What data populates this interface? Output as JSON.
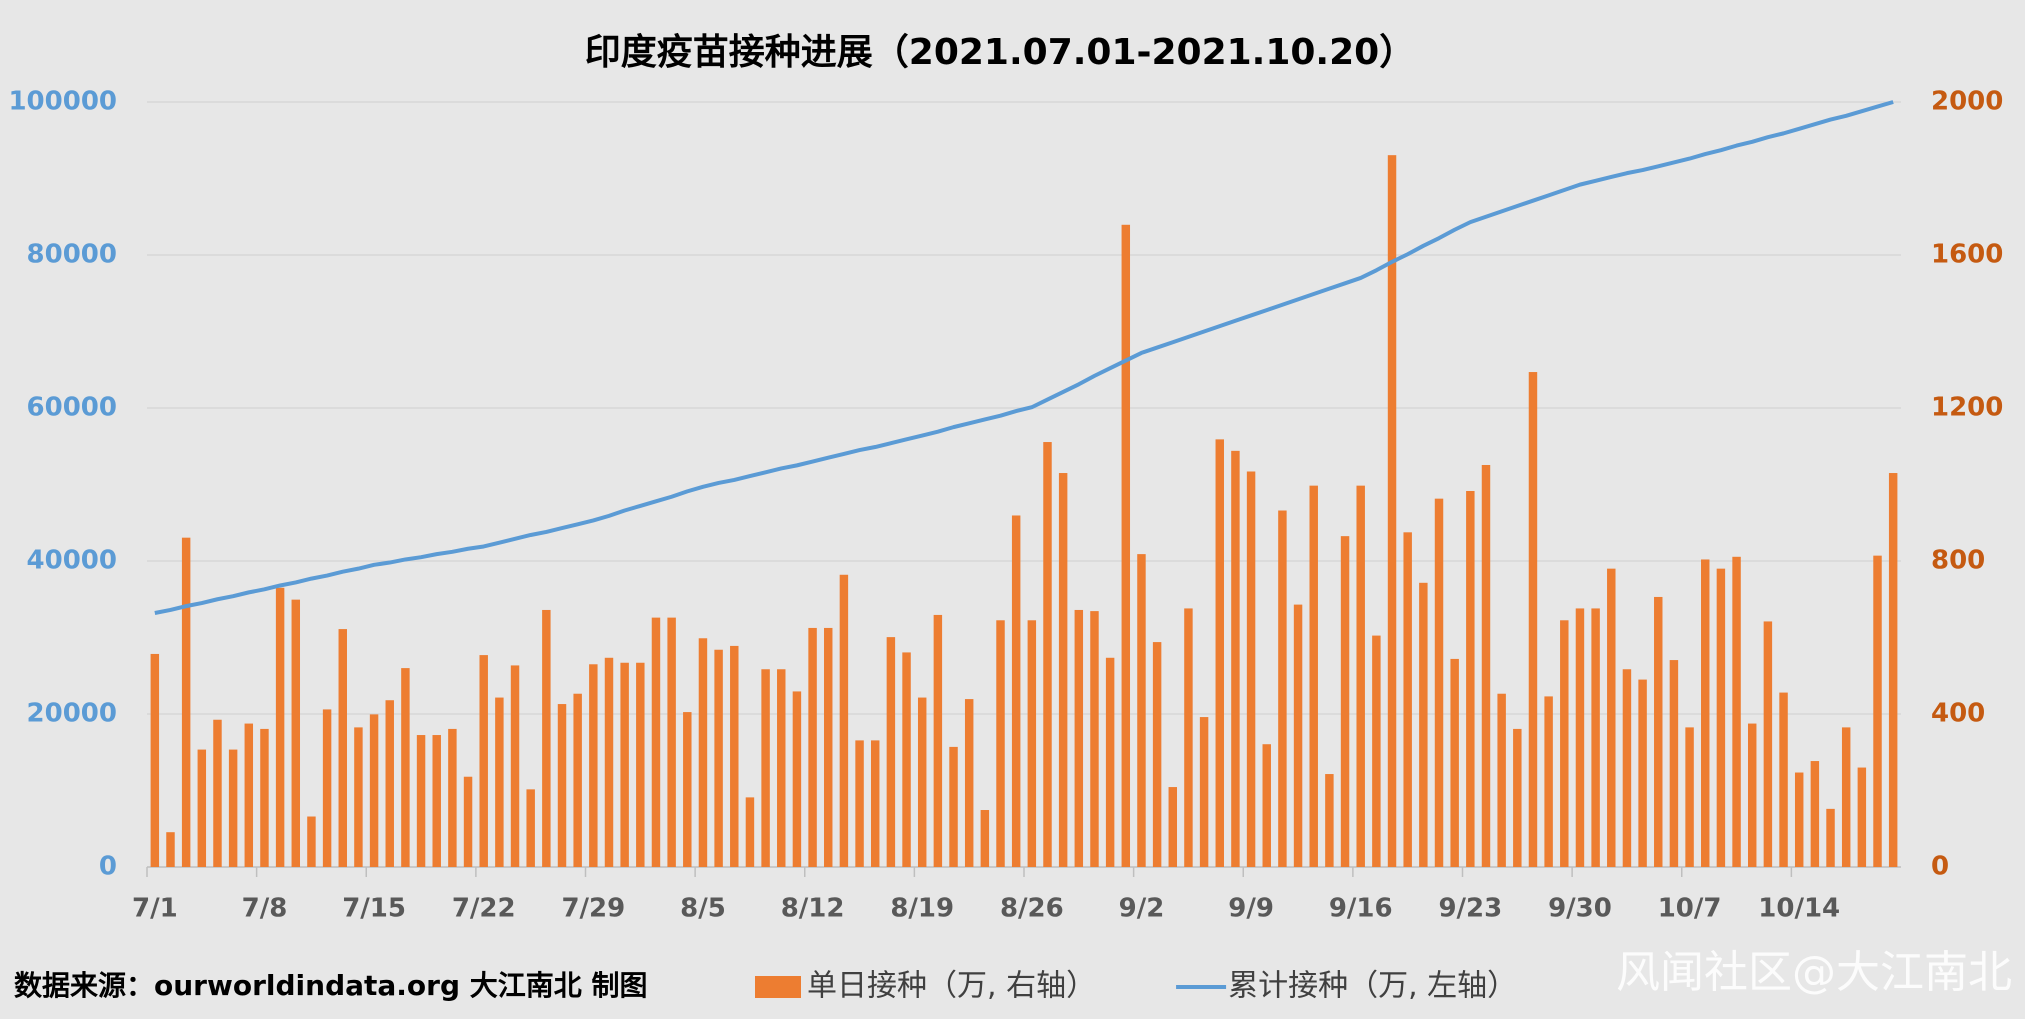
{
  "chart_data": {
    "type": "bar",
    "title": "印度疫苗接种进展（2021.07.01-2021.10.20）",
    "source": "数据来源：ourworldindata.org 大江南北 制图",
    "watermark": "风闻社区@大江南北",
    "categories": [
      "7/1",
      null,
      null,
      null,
      null,
      null,
      null,
      "7/8",
      null,
      null,
      null,
      null,
      null,
      null,
      "7/15",
      null,
      null,
      null,
      null,
      null,
      null,
      "7/22",
      null,
      null,
      null,
      null,
      null,
      null,
      "7/29",
      null,
      null,
      null,
      null,
      null,
      null,
      "8/5",
      null,
      null,
      null,
      null,
      null,
      null,
      "8/12",
      null,
      null,
      null,
      null,
      null,
      null,
      "8/19",
      null,
      null,
      null,
      null,
      null,
      null,
      "8/26",
      null,
      null,
      null,
      null,
      null,
      null,
      "9/2",
      null,
      null,
      null,
      null,
      null,
      null,
      "9/9",
      null,
      null,
      null,
      null,
      null,
      null,
      "9/16",
      null,
      null,
      null,
      null,
      null,
      null,
      "9/23",
      null,
      null,
      null,
      null,
      null,
      null,
      "9/30",
      null,
      null,
      null,
      null,
      null,
      null,
      "10/7",
      null,
      null,
      null,
      null,
      null,
      null,
      "10/14",
      null,
      null,
      null,
      null,
      null,
      null
    ],
    "series": [
      {
        "name": "单日接种（万, 右轴）",
        "type": "bar",
        "axis": "y2",
        "color": "#ed7d31",
        "values": [
          557,
          91,
          861,
          307,
          385,
          307,
          375,
          361,
          730,
          699,
          132,
          412,
          622,
          365,
          399,
          436,
          520,
          345,
          345,
          361,
          236,
          554,
          443,
          527,
          203,
          672,
          426,
          453,
          530,
          547,
          534,
          534,
          652,
          652,
          405,
          598,
          568,
          578,
          182,
          517,
          517,
          459,
          625,
          625,
          764,
          331,
          331,
          601,
          561,
          443,
          659,
          314,
          439,
          149,
          645,
          919,
          645,
          1111,
          1030,
          672,
          669,
          547,
          1679,
          818,
          588,
          209,
          676,
          392,
          1118,
          1088,
          1034,
          321,
          932,
          686,
          997,
          243,
          865,
          997,
          605,
          1861,
          875,
          743,
          963,
          544,
          983,
          1051,
          453,
          361,
          1294,
          446,
          645,
          676,
          676,
          780,
          517,
          490,
          706,
          541,
          365,
          804,
          780,
          811,
          375,
          642,
          456,
          247,
          277,
          152,
          365,
          260,
          814,
          1030
        ]
      },
      {
        "name": "累计接种（万, 左轴）",
        "type": "line",
        "color": "#5b9bd5",
        "values": [
          33200,
          33600,
          34100,
          34500,
          35000,
          35400,
          35900,
          36300,
          36800,
          37200,
          37700,
          38100,
          38600,
          39000,
          39500,
          39800,
          40200,
          40500,
          40900,
          41200,
          41600,
          41900,
          42400,
          42900,
          43400,
          43800,
          44300,
          44800,
          45300,
          45900,
          46600,
          47200,
          47800,
          48400,
          49100,
          49700,
          50200,
          50600,
          51100,
          51600,
          52100,
          52500,
          53000,
          53500,
          54000,
          54500,
          54900,
          55400,
          55900,
          56400,
          56900,
          57500,
          58000,
          58500,
          59000,
          59600,
          60100,
          61100,
          62100,
          63100,
          64200,
          65200,
          66200,
          67200,
          67900,
          68600,
          69300,
          70000,
          70700,
          71400,
          72100,
          72800,
          73500,
          74200,
          74900,
          75600,
          76300,
          77000,
          78000,
          79100,
          80100,
          81200,
          82200,
          83300,
          84300,
          85000,
          85700,
          86400,
          87100,
          87800,
          88500,
          89200,
          89700,
          90200,
          90700,
          91100,
          91600,
          92100,
          92600,
          93200,
          93700,
          94300,
          94800,
          95400,
          95900,
          96500,
          97100,
          97700,
          98200,
          98800,
          99400,
          100000
        ]
      }
    ],
    "ylim": [
      0,
      100000
    ],
    "yticks": [
      0,
      20000,
      40000,
      60000,
      80000,
      100000
    ],
    "y2lim": [
      0,
      2000
    ],
    "y2ticks": [
      0,
      400,
      800,
      1200,
      1600,
      2000
    ],
    "grid": true,
    "legend": "bottom"
  }
}
